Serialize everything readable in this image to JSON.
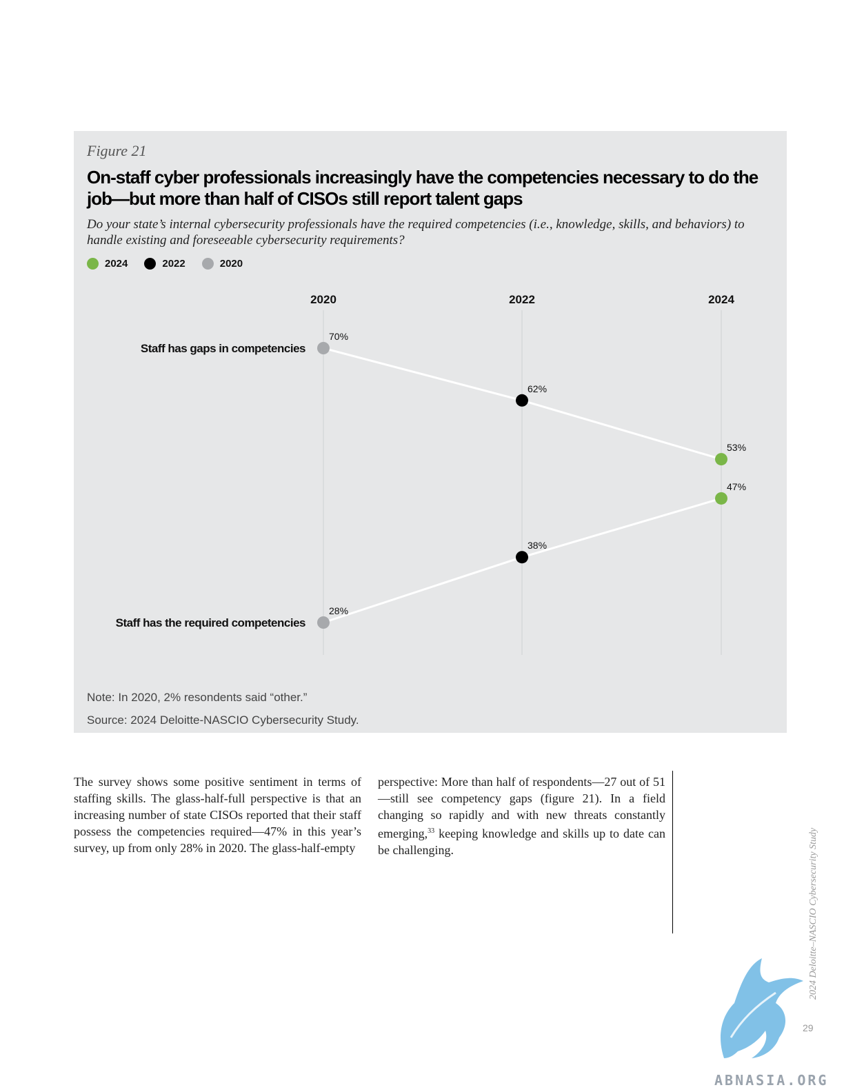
{
  "figure": {
    "label": "Figure 21",
    "title": "On-staff cyber professionals increasingly have the competencies necessary to do the job—but more than half of CISOs still report talent gaps",
    "subtitle": "Do your state’s internal cybersecurity professionals have the required competencies (i.e., knowledge, skills, and behaviors) to handle existing and foreseeable cybersecurity requirements?",
    "note": "Note: In 2020, 2% resondents said “other.”",
    "source": "Source: 2024 Deloitte-NASCIO Cybersecurity Study."
  },
  "legend": [
    {
      "label": "2024",
      "color": "#7ab648"
    },
    {
      "label": "2022",
      "color": "#000000"
    },
    {
      "label": "2020",
      "color": "#a7a9ac"
    }
  ],
  "chart_data": {
    "type": "line",
    "x": [
      "2020",
      "2022",
      "2024"
    ],
    "point_colors": [
      "#a7a9ac",
      "#000000",
      "#7ab648"
    ],
    "line_color": "#ffffff",
    "series": [
      {
        "name": "Staff has gaps in competencies",
        "values": [
          70,
          62,
          53
        ],
        "labels": [
          "70%",
          "62%",
          "53%"
        ]
      },
      {
        "name": "Staff has the required competencies",
        "values": [
          28,
          38,
          47
        ],
        "labels": [
          "28%",
          "38%",
          "47%"
        ]
      }
    ],
    "ylim": [
      28,
      70
    ],
    "grid": "vertical"
  },
  "body": {
    "col1": "The survey shows some positive sentiment in terms of staffing skills. The glass-half-full perspective is that an increasing number of state CISOs reported that their staff possess the competencies required—47% in this year’s survey, up from only 28% in 2020. The glass-half-empty",
    "col2_before": "perspective: More than half of respondents—27 out of 51—still see competency gaps (figure 21). In a field changing so rapidly and with new threats constantly emerging,",
    "col2_sup": "33",
    "col2_after": " keeping knowledge and skills up to date can be challenging."
  },
  "footer": {
    "running_title": "2024 Deloitte–NASCIO Cybersecurity Study",
    "page_number": "29",
    "watermark": "ABNASIA.ORG"
  }
}
